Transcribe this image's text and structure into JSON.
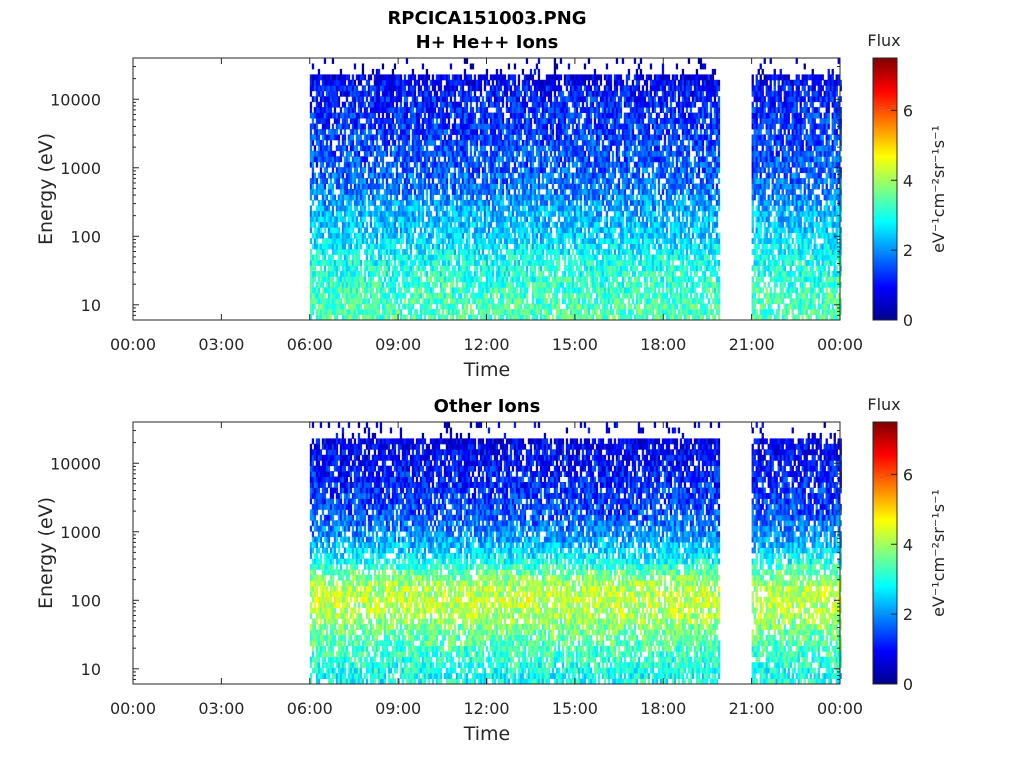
{
  "figure_title": "RPCICA151003.PNG",
  "colors": {
    "colormap": [
      "#00008f",
      "#0000ff",
      "#0080ff",
      "#00ffff",
      "#80ff80",
      "#ffff00",
      "#ff8000",
      "#ff0000",
      "#800000"
    ],
    "axes": "#262626",
    "background": "#ffffff"
  },
  "chart_data": [
    {
      "type": "heatmap",
      "title": "H+ He++ Ions",
      "xlabel": "Time",
      "ylabel": "Energy (eV)",
      "x_tick_labels": [
        "00:00",
        "03:00",
        "06:00",
        "09:00",
        "12:00",
        "15:00",
        "18:00",
        "21:00",
        "00:00"
      ],
      "x_range_hours": [
        0,
        24
      ],
      "y_scale": "log",
      "y_tick_labels": [
        "10",
        "100",
        "1000",
        "10000"
      ],
      "y_range": [
        6,
        40000
      ],
      "grid": false,
      "colorbar": {
        "label": "Flux",
        "unit_label": "eV⁻¹cm⁻²sr⁻¹s⁻¹",
        "range": [
          0,
          7.5
        ],
        "tick_labels": [
          "0",
          "2",
          "4",
          "6"
        ]
      },
      "data_intervals_hours": [
        [
          6.0,
          19.9
        ],
        [
          21.0,
          24.0
        ]
      ],
      "data_gaps_hours": [
        [
          0.0,
          6.0
        ],
        [
          19.9,
          21.0
        ]
      ],
      "flux_profile": {
        "energy_eV": [
          8,
          20,
          50,
          100,
          200,
          300,
          500,
          1000,
          3000,
          8000,
          15000,
          30000
        ],
        "flux": [
          3.4,
          3.2,
          2.9,
          2.5,
          2.3,
          2.1,
          1.8,
          1.6,
          1.4,
          1.2,
          1.0,
          0.4
        ]
      }
    },
    {
      "type": "heatmap",
      "title": "Other Ions",
      "xlabel": "Time",
      "ylabel": "Energy (eV)",
      "x_tick_labels": [
        "00:00",
        "03:00",
        "06:00",
        "09:00",
        "12:00",
        "15:00",
        "18:00",
        "21:00",
        "00:00"
      ],
      "x_range_hours": [
        0,
        24
      ],
      "y_scale": "log",
      "y_tick_labels": [
        "10",
        "100",
        "1000",
        "10000"
      ],
      "y_range": [
        6,
        40000
      ],
      "grid": false,
      "colorbar": {
        "label": "Flux",
        "unit_label": "eV⁻¹cm⁻²sr⁻¹s⁻¹",
        "range": [
          0,
          7.5
        ],
        "tick_labels": [
          "0",
          "2",
          "4",
          "6"
        ]
      },
      "data_intervals_hours": [
        [
          6.0,
          19.9
        ],
        [
          21.0,
          24.0
        ]
      ],
      "data_gaps_hours": [
        [
          0.0,
          6.0
        ],
        [
          19.9,
          21.0
        ]
      ],
      "flux_profile": {
        "energy_eV": [
          8,
          20,
          40,
          60,
          100,
          150,
          250,
          400,
          800,
          2000,
          10000,
          30000
        ],
        "flux": [
          2.9,
          3.3,
          3.7,
          4.0,
          4.3,
          4.1,
          3.6,
          2.8,
          2.1,
          1.5,
          1.0,
          0.6
        ]
      }
    }
  ]
}
